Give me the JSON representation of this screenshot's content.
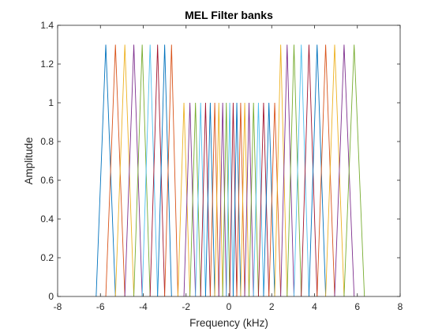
{
  "chart_data": {
    "type": "line",
    "title": "MEL Filter banks",
    "xlabel": "Frequency (kHz)",
    "ylabel": "Amplitude",
    "xlim": [
      -8,
      8
    ],
    "ylim": [
      0,
      1.4
    ],
    "xticks": [
      -8,
      -6,
      -4,
      -2,
      0,
      2,
      4,
      6,
      8
    ],
    "yticks": [
      0,
      0.2,
      0.4,
      0.6,
      0.8,
      1,
      1.2,
      1.4
    ],
    "xtick_labels": [
      "-8",
      "-6",
      "-4",
      "-2",
      "0",
      "2",
      "4",
      "6",
      "8"
    ],
    "ytick_labels": [
      "0",
      "0.2",
      "0.4",
      "0.6",
      "0.8",
      "1",
      "1.2",
      "1.4"
    ],
    "grid": false,
    "box": true,
    "colors": [
      "#0072BD",
      "#D95319",
      "#EDB120",
      "#7E2F8E",
      "#77AC30",
      "#4DBEEE",
      "#A2142F"
    ],
    "series": [
      {
        "x": [
          -6.2,
          -5.75,
          -5.3
        ],
        "y": [
          0,
          1.3,
          0
        ]
      },
      {
        "x": [
          -5.75,
          -5.3,
          -4.86
        ],
        "y": [
          0,
          1.3,
          0
        ]
      },
      {
        "x": [
          -5.3,
          -4.86,
          -4.44
        ],
        "y": [
          0,
          1.3,
          0
        ]
      },
      {
        "x": [
          -4.86,
          -4.44,
          -4.05
        ],
        "y": [
          0,
          1.3,
          0
        ]
      },
      {
        "x": [
          -4.44,
          -4.05,
          -3.68
        ],
        "y": [
          0,
          1.3,
          0
        ]
      },
      {
        "x": [
          -4.05,
          -3.68,
          -3.33
        ],
        "y": [
          0,
          1.3,
          0
        ]
      },
      {
        "x": [
          -3.68,
          -3.33,
          -3.0
        ],
        "y": [
          0,
          1.3,
          0
        ]
      },
      {
        "x": [
          -3.33,
          -3.0,
          -2.68
        ],
        "y": [
          0,
          1.3,
          0
        ]
      },
      {
        "x": [
          -3.0,
          -2.68,
          -2.38
        ],
        "y": [
          0,
          1.3,
          0
        ]
      },
      {
        "x": [
          -2.38,
          -2.1,
          -1.82
        ],
        "y": [
          0,
          1,
          0
        ]
      },
      {
        "x": [
          -2.1,
          -1.82,
          -1.56
        ],
        "y": [
          0,
          1,
          0
        ]
      },
      {
        "x": [
          -1.82,
          -1.56,
          -1.32
        ],
        "y": [
          0,
          1,
          0
        ]
      },
      {
        "x": [
          -1.56,
          -1.32,
          -1.09
        ],
        "y": [
          0,
          1,
          0
        ]
      },
      {
        "x": [
          -1.32,
          -1.09,
          -0.87
        ],
        "y": [
          0,
          1,
          0
        ]
      },
      {
        "x": [
          -1.09,
          -0.87,
          -0.66
        ],
        "y": [
          0,
          1,
          0
        ]
      },
      {
        "x": [
          -0.87,
          -0.66,
          -0.47
        ],
        "y": [
          0,
          1,
          0
        ]
      },
      {
        "x": [
          -0.66,
          -0.47,
          -0.29
        ],
        "y": [
          0,
          1,
          0
        ]
      },
      {
        "x": [
          -0.47,
          -0.29,
          -0.12
        ],
        "y": [
          0,
          1,
          0
        ]
      },
      {
        "x": [
          -0.29,
          -0.12,
          0.04
        ],
        "y": [
          0,
          1,
          0
        ]
      },
      {
        "x": [
          -0.12,
          0.04,
          0.2
        ],
        "y": [
          0,
          1,
          0
        ]
      },
      {
        "x": [
          0.04,
          0.2,
          0.37
        ],
        "y": [
          0,
          1,
          0
        ]
      },
      {
        "x": [
          0.2,
          0.37,
          0.55
        ],
        "y": [
          0,
          1,
          0
        ]
      },
      {
        "x": [
          0.37,
          0.55,
          0.74
        ],
        "y": [
          0,
          1,
          0
        ]
      },
      {
        "x": [
          0.55,
          0.74,
          0.94
        ],
        "y": [
          0,
          1,
          0
        ]
      },
      {
        "x": [
          0.74,
          0.94,
          1.15
        ],
        "y": [
          0,
          1,
          0
        ]
      },
      {
        "x": [
          0.94,
          1.15,
          1.38
        ],
        "y": [
          0,
          1,
          0
        ]
      },
      {
        "x": [
          1.15,
          1.38,
          1.62
        ],
        "y": [
          0,
          1,
          0
        ]
      },
      {
        "x": [
          1.38,
          1.62,
          1.87
        ],
        "y": [
          0,
          1,
          0
        ]
      },
      {
        "x": [
          1.62,
          1.87,
          2.14
        ],
        "y": [
          0,
          1,
          0
        ]
      },
      {
        "x": [
          1.87,
          2.14,
          2.42
        ],
        "y": [
          0,
          1,
          0
        ]
      },
      {
        "x": [
          2.14,
          2.42,
          2.72
        ],
        "y": [
          0,
          1.3,
          0
        ]
      },
      {
        "x": [
          2.42,
          2.72,
          3.04
        ],
        "y": [
          0,
          1.3,
          0
        ]
      },
      {
        "x": [
          2.72,
          3.04,
          3.38
        ],
        "y": [
          0,
          1.3,
          0
        ]
      },
      {
        "x": [
          3.04,
          3.38,
          3.74
        ],
        "y": [
          0,
          1.3,
          0
        ]
      },
      {
        "x": [
          3.38,
          3.74,
          4.12
        ],
        "y": [
          0,
          1.3,
          0
        ]
      },
      {
        "x": [
          3.74,
          4.12,
          4.52
        ],
        "y": [
          0,
          1.3,
          0
        ]
      },
      {
        "x": [
          4.12,
          4.52,
          4.94
        ],
        "y": [
          0,
          1.3,
          0
        ]
      },
      {
        "x": [
          4.52,
          4.94,
          5.38
        ],
        "y": [
          0,
          1.3,
          0
        ]
      },
      {
        "x": [
          4.94,
          5.38,
          5.85
        ],
        "y": [
          0,
          1.3,
          0
        ]
      },
      {
        "x": [
          5.38,
          5.85,
          6.33
        ],
        "y": [
          0,
          1.3,
          0
        ]
      }
    ]
  }
}
